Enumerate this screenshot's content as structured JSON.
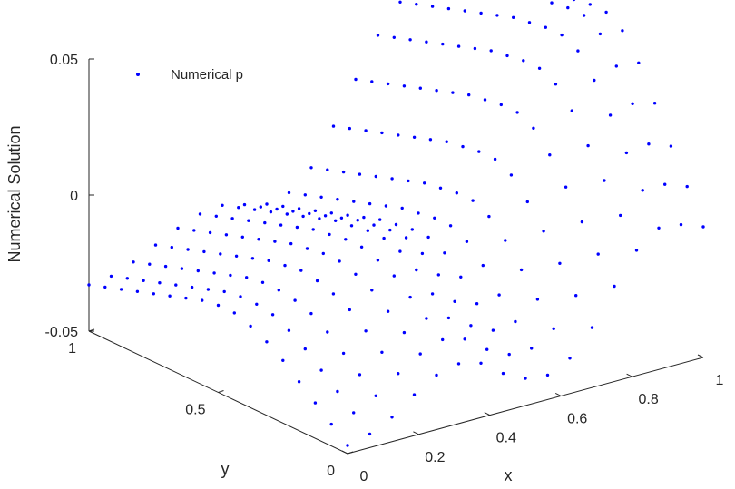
{
  "chart_data": {
    "type": "scatter3d",
    "title": "",
    "xlabel": "x",
    "ylabel": "y",
    "zlabel": "Numerical Solution",
    "xlim": [
      0,
      1
    ],
    "ylim": [
      0,
      1
    ],
    "zlim": [
      -0.05,
      0.05
    ],
    "x_ticks": [
      "0",
      "0.2",
      "0.4",
      "0.6",
      "0.8",
      "1"
    ],
    "y_ticks": [
      "0",
      "0.5",
      "1"
    ],
    "z_ticks": [
      "-0.05",
      "0",
      "0.05"
    ],
    "grid": false,
    "legend": {
      "position": "top-left",
      "entries": [
        "Numerical p"
      ]
    },
    "series": [
      {
        "name": "Numerical p",
        "color": "#0000ff",
        "marker": "dot",
        "grid_n": 17,
        "z_grid": [
          [
            -0.047,
            -0.045,
            -0.041,
            -0.035,
            -0.03,
            -0.028,
            -0.03,
            -0.036,
            -0.04,
            -0.041,
            -0.037,
            -0.028,
            -0.015,
            -0.004,
            0.002,
            0.001,
            -0.002
          ],
          [
            -0.042,
            -0.04,
            -0.036,
            -0.03,
            -0.025,
            -0.022,
            -0.024,
            -0.03,
            -0.034,
            -0.034,
            -0.029,
            -0.019,
            -0.006,
            0.006,
            0.013,
            0.013,
            0.01
          ],
          [
            -0.037,
            -0.035,
            -0.031,
            -0.025,
            -0.02,
            -0.017,
            -0.019,
            -0.024,
            -0.028,
            -0.027,
            -0.021,
            -0.01,
            0.003,
            0.016,
            0.024,
            0.025,
            0.022
          ],
          [
            -0.032,
            -0.03,
            -0.026,
            -0.02,
            -0.015,
            -0.012,
            -0.013,
            -0.018,
            -0.021,
            -0.02,
            -0.013,
            -0.001,
            0.013,
            0.026,
            0.035,
            0.037,
            0.035
          ],
          [
            -0.027,
            -0.025,
            -0.021,
            -0.015,
            -0.01,
            -0.007,
            -0.007,
            -0.011,
            -0.014,
            -0.012,
            -0.005,
            0.007,
            0.022,
            0.036,
            0.045,
            0.048,
            0.047
          ],
          [
            -0.023,
            -0.021,
            -0.017,
            -0.012,
            -0.007,
            -0.004,
            -0.003,
            -0.006,
            -0.008,
            -0.006,
            0.001,
            0.014,
            0.029,
            0.043,
            0.053,
            0.057,
            0.056
          ],
          [
            -0.02,
            -0.018,
            -0.015,
            -0.01,
            -0.005,
            -0.002,
            -0.001,
            -0.003,
            -0.005,
            -0.003,
            0.004,
            0.017,
            0.032,
            0.046,
            0.056,
            0.061,
            0.06
          ],
          [
            -0.018,
            -0.017,
            -0.014,
            -0.009,
            -0.005,
            -0.002,
            -0.001,
            -0.003,
            -0.005,
            -0.003,
            0.004,
            0.017,
            0.032,
            0.046,
            0.056,
            0.061,
            0.06
          ],
          [
            -0.018,
            -0.017,
            -0.014,
            -0.01,
            -0.006,
            -0.003,
            -0.002,
            -0.004,
            -0.006,
            -0.004,
            0.003,
            0.016,
            0.031,
            0.045,
            0.055,
            0.06,
            0.059
          ],
          [
            -0.019,
            -0.018,
            -0.015,
            -0.011,
            -0.007,
            -0.004,
            -0.003,
            -0.005,
            -0.007,
            -0.005,
            0.002,
            0.015,
            0.03,
            0.044,
            0.054,
            0.059,
            0.058
          ],
          [
            -0.021,
            -0.02,
            -0.017,
            -0.013,
            -0.009,
            -0.006,
            -0.005,
            -0.007,
            -0.009,
            -0.007,
            0.0,
            0.013,
            0.028,
            0.042,
            0.052,
            0.057,
            0.056
          ],
          [
            -0.023,
            -0.022,
            -0.019,
            -0.015,
            -0.011,
            -0.008,
            -0.007,
            -0.009,
            -0.011,
            -0.009,
            -0.002,
            0.011,
            0.026,
            0.04,
            0.05,
            0.055,
            0.054
          ],
          [
            -0.025,
            -0.024,
            -0.021,
            -0.017,
            -0.013,
            -0.01,
            -0.009,
            -0.011,
            -0.013,
            -0.011,
            -0.004,
            0.009,
            0.024,
            0.038,
            0.048,
            0.053,
            0.052
          ],
          [
            -0.027,
            -0.026,
            -0.023,
            -0.019,
            -0.015,
            -0.012,
            -0.011,
            -0.013,
            -0.015,
            -0.013,
            -0.006,
            0.007,
            0.022,
            0.036,
            0.046,
            0.051,
            0.05
          ],
          [
            -0.029,
            -0.028,
            -0.025,
            -0.021,
            -0.017,
            -0.014,
            -0.013,
            -0.015,
            -0.017,
            -0.015,
            -0.008,
            0.005,
            0.02,
            0.034,
            0.044,
            0.049,
            0.048
          ],
          [
            -0.031,
            -0.03,
            -0.027,
            -0.023,
            -0.019,
            -0.016,
            -0.015,
            -0.017,
            -0.019,
            -0.017,
            -0.01,
            0.003,
            0.018,
            0.032,
            0.042,
            0.047,
            0.046
          ],
          [
            -0.033,
            -0.032,
            -0.029,
            -0.025,
            -0.021,
            -0.018,
            -0.017,
            -0.019,
            -0.021,
            -0.019,
            -0.012,
            0.001,
            0.016,
            0.03,
            0.04,
            0.045,
            0.044
          ]
        ]
      }
    ]
  }
}
